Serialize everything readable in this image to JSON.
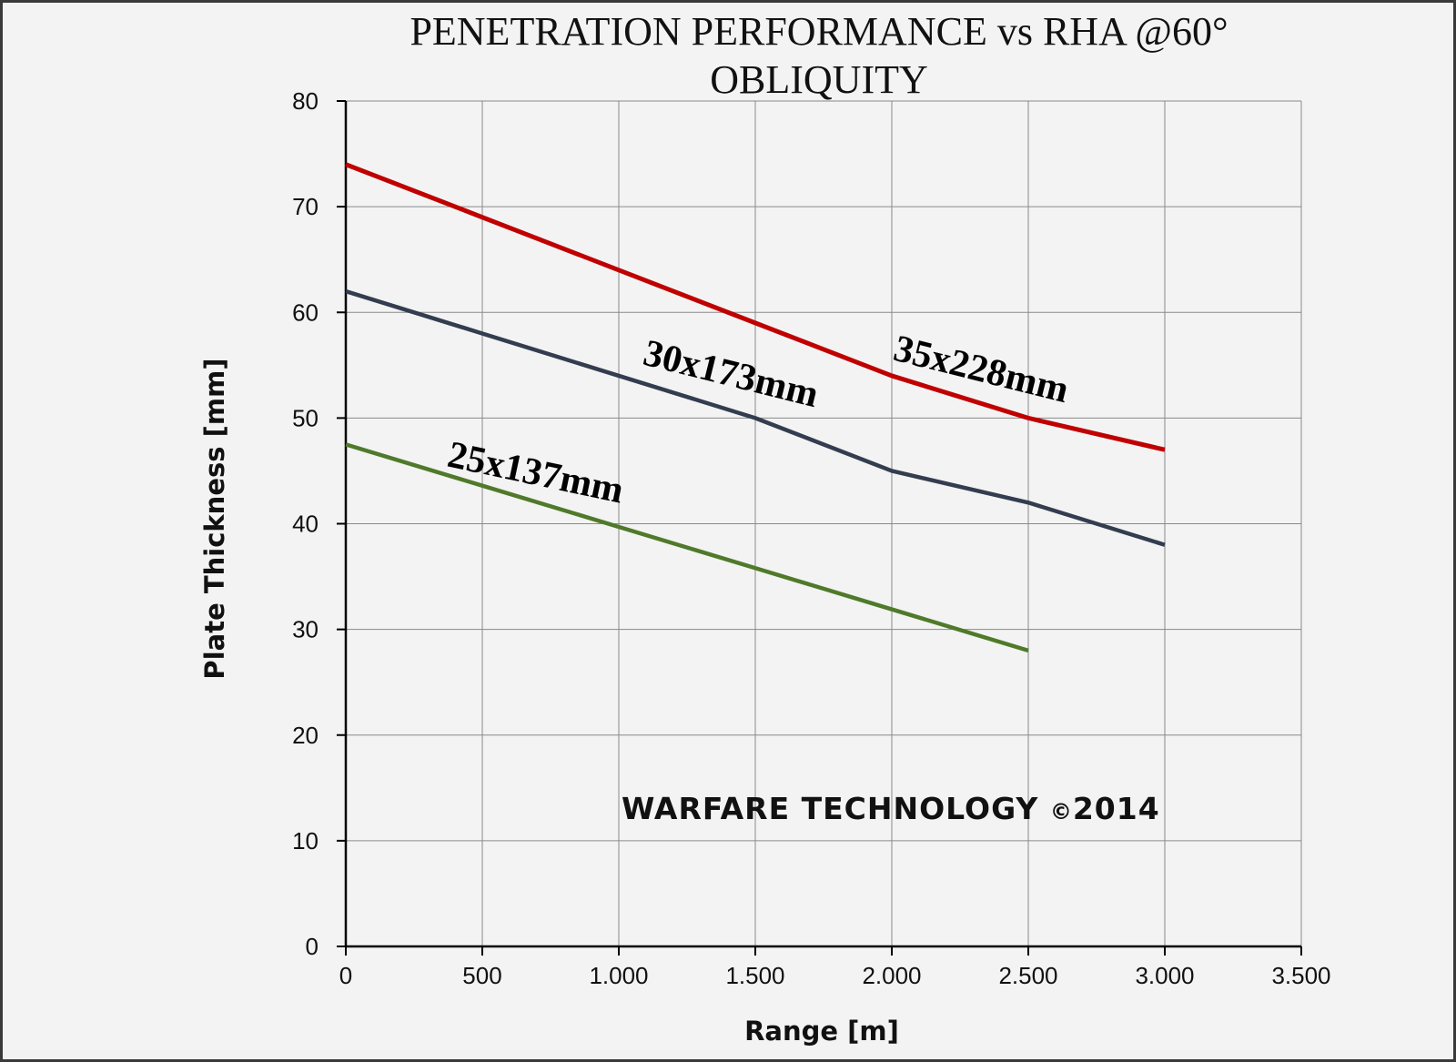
{
  "chart_data": {
    "type": "line",
    "title_lines": [
      "PENETRATION PERFORMANCE vs RHA @60°",
      "OBLIQUITY"
    ],
    "xlabel": "Range [m]",
    "ylabel": "Plate Thickness [mm]",
    "xlim": [
      0,
      3500
    ],
    "ylim": [
      0,
      80
    ],
    "xticks": [
      0,
      500,
      1000,
      1500,
      2000,
      2500,
      3000,
      3500
    ],
    "xtick_labels": [
      "0",
      "500",
      "1.000",
      "1.500",
      "2.000",
      "2.500",
      "3.000",
      "3.500"
    ],
    "yticks": [
      0,
      10,
      20,
      30,
      40,
      50,
      60,
      70,
      80
    ],
    "ytick_labels": [
      "0",
      "10",
      "20",
      "30",
      "40",
      "50",
      "60",
      "70",
      "80"
    ],
    "grid": true,
    "series": [
      {
        "name": "35x228mm",
        "color": "#c00000",
        "x": [
          0,
          500,
          1000,
          1500,
          2000,
          2500,
          3000
        ],
        "values": [
          74,
          69,
          64,
          59,
          54,
          50,
          47
        ]
      },
      {
        "name": "30x173mm",
        "color": "#333d4f",
        "x": [
          0,
          500,
          1000,
          1500,
          2000,
          2500,
          3000
        ],
        "values": [
          62,
          58,
          54,
          50,
          45,
          42,
          38
        ]
      },
      {
        "name": "25x137mm",
        "color": "#4f7a2a",
        "x": [
          0,
          500,
          1000,
          1500,
          2000,
          2500
        ],
        "values": [
          47.5,
          43.6,
          39.7,
          35.8,
          31.9,
          28
        ]
      }
    ],
    "annotations": [
      "35x228mm",
      "30x173mm",
      "25x137mm"
    ],
    "watermark": {
      "text": "WARFARE TECHNOLOGY ",
      "copyright": "©",
      "year": "2014"
    }
  }
}
